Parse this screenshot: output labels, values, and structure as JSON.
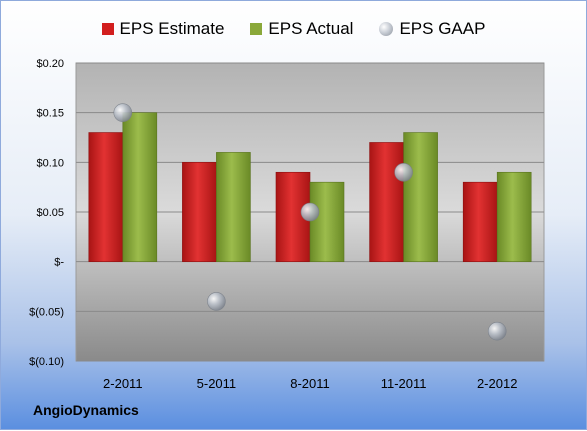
{
  "company": "AngioDynamics",
  "chart_data": {
    "type": "bar",
    "categories": [
      "2-2011",
      "5-2011",
      "8-2011",
      "11-2011",
      "2-2012"
    ],
    "series": [
      {
        "name": "EPS Estimate",
        "type": "bar",
        "color": "#d21e1e",
        "values": [
          0.13,
          0.1,
          0.09,
          0.12,
          0.08
        ]
      },
      {
        "name": "EPS Actual",
        "type": "bar",
        "color": "#8aa83a",
        "values": [
          0.15,
          0.11,
          0.08,
          0.13,
          0.09
        ]
      },
      {
        "name": "EPS GAAP",
        "type": "scatter",
        "color": "#b8bec8",
        "values": [
          0.15,
          -0.04,
          0.05,
          0.09,
          -0.07
        ]
      }
    ],
    "ylim": [
      -0.1,
      0.2
    ],
    "yticks": [
      0.2,
      0.15,
      0.1,
      0.05,
      0.0,
      -0.05,
      -0.1
    ],
    "ytick_labels": [
      "$0.20",
      "$0.15",
      "$0.10",
      "$0.05",
      "$-",
      "$(0.05)",
      "$(0.10)"
    ],
    "grid": true,
    "legend_position": "top"
  }
}
